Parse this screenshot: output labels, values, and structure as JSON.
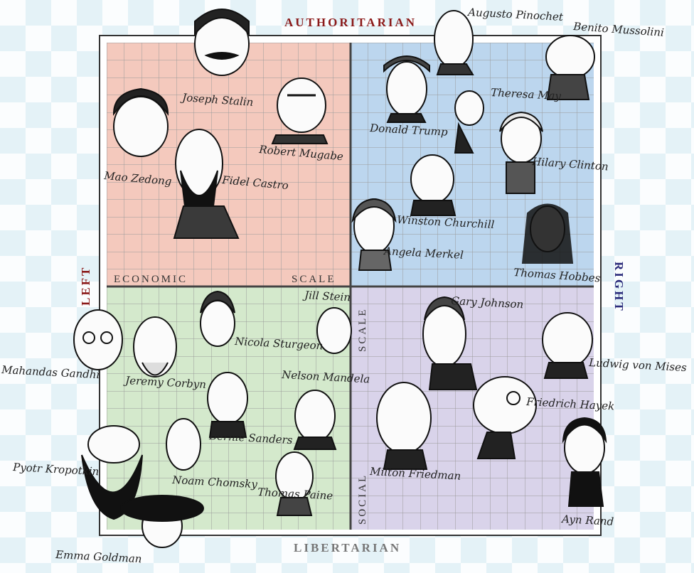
{
  "axes": {
    "top": "AUTHORITARIAN",
    "bottom": "LIBERTARIAN",
    "left": "LEFT",
    "right": "RIGHT",
    "economic_left": "ECONOMIC",
    "economic_right": "SCALE",
    "social_top": "SCALE",
    "social_bottom": "SOCIAL"
  },
  "colors": {
    "authoritarian_left": "#f4c9bd",
    "authoritarian_right": "#bcd6ee",
    "libertarian_left": "#d4e9cc",
    "libertarian_right": "#d9d3ea",
    "grid_line": "#9a9a9a",
    "frame": "#333333"
  },
  "figures": [
    {
      "name": "Joseph Stalin"
    },
    {
      "name": "Augusto Pinochet"
    },
    {
      "name": "Benito Mussolini"
    },
    {
      "name": "Mao Zedong"
    },
    {
      "name": "Robert Mugabe"
    },
    {
      "name": "Fidel Castro"
    },
    {
      "name": "Donald Trump"
    },
    {
      "name": "Theresa May"
    },
    {
      "name": "Hilary Clinton"
    },
    {
      "name": "Winston Churchill"
    },
    {
      "name": "Angela Merkel"
    },
    {
      "name": "Thomas Hobbes"
    },
    {
      "name": "Mahandas Gandhi"
    },
    {
      "name": "Jeremy Corbyn"
    },
    {
      "name": "Nicola Sturgeon"
    },
    {
      "name": "Jill Stein"
    },
    {
      "name": "Nelson Mandela"
    },
    {
      "name": "Bernie Sanders"
    },
    {
      "name": "Noam Chomsky"
    },
    {
      "name": "Thomas Paine"
    },
    {
      "name": "Pyotr Kropotkin"
    },
    {
      "name": "Emma Goldman"
    },
    {
      "name": "Gary Johnson"
    },
    {
      "name": "Ludwig von Mises"
    },
    {
      "name": "Friedrich Hayek"
    },
    {
      "name": "Milton Friedman"
    },
    {
      "name": "Ayn Rand"
    }
  ]
}
